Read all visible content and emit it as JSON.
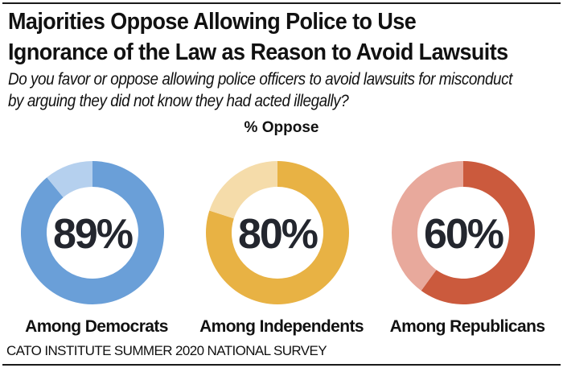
{
  "chart_data": {
    "type": "pie",
    "variant": "donut",
    "title": "Majorities Oppose Allowing Police to Use Ignorance of the Law as Reason to Avoid Lawsuits",
    "subtitle_lines": [
      "Do you favor or oppose allowing police officers to avoid lawsuits for misconduct",
      "by arguing they did not know they had acted illegally?"
    ],
    "measure_label": "% Oppose",
    "categories": [
      "Among Democrats",
      "Among Independents",
      "Among Republicans"
    ],
    "series": [
      {
        "name": "Oppose",
        "values": [
          89,
          80,
          60
        ]
      },
      {
        "name": "Remainder",
        "values": [
          11,
          20,
          40
        ]
      }
    ],
    "value_labels": [
      "89%",
      "80%",
      "60%"
    ],
    "colors": [
      {
        "main": "#6a9fd8",
        "light": "#b5d0ee"
      },
      {
        "main": "#e8b244",
        "light": "#f5dcaa"
      },
      {
        "main": "#cb5a3d",
        "light": "#e8a99c"
      }
    ],
    "source": "CATO INSTITUTE SUMMER 2020 NATIONAL SURVEY"
  }
}
